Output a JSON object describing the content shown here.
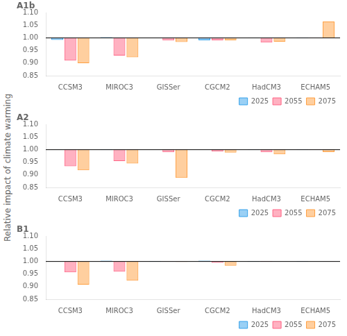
{
  "chart_data": [
    {
      "type": "bar",
      "title": "A1b",
      "categories": [
        "CCSM3",
        "MIROC3",
        "GISSer",
        "CGCM2",
        "HadCM3",
        "ECHAM5"
      ],
      "series": [
        {
          "name": "2025",
          "values": [
            0.992,
            1.003,
            1.0,
            0.991,
            0.999,
            1.002
          ]
        },
        {
          "name": "2055",
          "values": [
            0.91,
            0.93,
            0.99,
            0.991,
            0.982,
            1.001
          ]
        },
        {
          "name": "2075",
          "values": [
            0.9,
            0.923,
            0.984,
            0.991,
            0.985,
            1.065
          ]
        }
      ],
      "baseline": 1.0,
      "ylim": [
        0.85,
        1.1
      ],
      "yticks": [
        0.85,
        {
          "value": 0.9,
          "label": "0.90"
        },
        0.95,
        {
          "value": 1.0,
          "label": "1.00"
        },
        1.05,
        {
          "value": 1.1,
          "label": "1.10"
        }
      ],
      "grid": false,
      "legend": "lower right"
    },
    {
      "type": "bar",
      "title": "A2",
      "ylabel": "Relative impact of climate warming",
      "categories": [
        "CCSM3",
        "MIROC3",
        "GISSer",
        "CGCM2",
        "HadCM3",
        "ECHAM5"
      ],
      "series": [
        {
          "name": "2025",
          "values": [
            0.999,
            1.002,
            1.0,
            1.0,
            1.001,
            1.001
          ]
        },
        {
          "name": "2055",
          "values": [
            0.934,
            0.955,
            0.99,
            0.993,
            0.99,
            1.001
          ]
        },
        {
          "name": "2075",
          "values": [
            0.918,
            0.945,
            0.888,
            0.989,
            0.982,
            0.991
          ]
        }
      ],
      "baseline": 1.0,
      "ylim": [
        0.85,
        1.1
      ],
      "yticks": [
        0.85,
        {
          "value": 0.9,
          "label": "0.90"
        },
        0.95,
        {
          "value": 1.0,
          "label": "1.00"
        },
        1.05,
        {
          "value": 1.1,
          "label": "1.10"
        }
      ],
      "grid": false,
      "legend": "lower right"
    },
    {
      "type": "bar",
      "title": "B1",
      "categories": [
        "CCSM3",
        "MIROC3",
        "GISSer",
        "CGCM2",
        "HadCM3",
        "ECHAM5"
      ],
      "series": [
        {
          "name": "2025",
          "values": [
            1.0,
            1.003,
            1.002,
            1.003,
            1.002,
            1.002
          ]
        },
        {
          "name": "2055",
          "values": [
            0.957,
            0.96,
            0.999,
            0.995,
            1.002,
            1.0
          ]
        },
        {
          "name": "2075",
          "values": [
            0.908,
            0.924,
            0.998,
            0.983,
            1.0,
            0.999
          ]
        }
      ],
      "baseline": 1.0,
      "ylim": [
        0.85,
        1.1
      ],
      "yticks": [
        0.85,
        {
          "value": 0.9,
          "label": "0.90"
        },
        0.95,
        {
          "value": 1.0,
          "label": "1.00"
        },
        1.05,
        {
          "value": 1.1,
          "label": "1.10"
        }
      ],
      "grid": false,
      "legend": "lower right"
    }
  ]
}
